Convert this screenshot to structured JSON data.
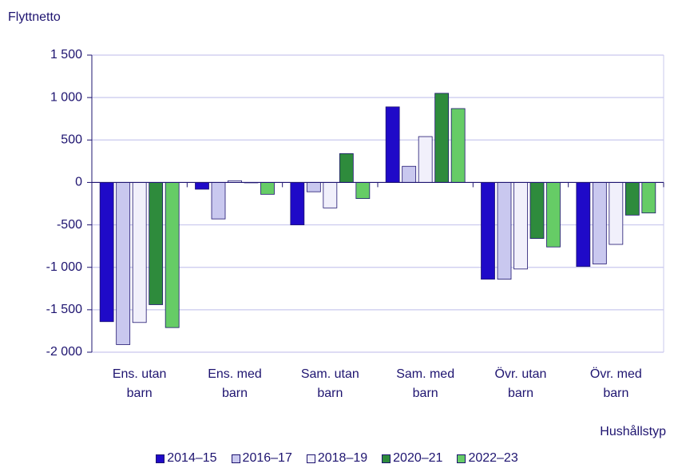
{
  "chart_data": {
    "type": "bar",
    "title": "Flyttnetto",
    "x_label": "Hushållstyp",
    "categories": [
      "Ens. utan\nbarn",
      "Ens. med\nbarn",
      "Sam. utan\nbarn",
      "Sam. med\nbarn",
      "Övr. utan\nbarn",
      "Övr. med\nbarn"
    ],
    "series": [
      {
        "name": "2014–15",
        "color": "#1f0ac8",
        "values": [
          -1640,
          -80,
          -500,
          890,
          -1140,
          -990
        ]
      },
      {
        "name": "2016–17",
        "color": "#c9c8ef",
        "values": [
          -1910,
          -430,
          -110,
          190,
          -1140,
          -960
        ]
      },
      {
        "name": "2018–19",
        "color": "#f1f0fb",
        "values": [
          -1650,
          20,
          -300,
          540,
          -1020,
          -730
        ]
      },
      {
        "name": "2020–21",
        "color": "#2e8b3c",
        "values": [
          -1440,
          0,
          340,
          1050,
          -660,
          -385
        ]
      },
      {
        "name": "2022–23",
        "color": "#66cc66",
        "values": [
          -1710,
          -140,
          -190,
          870,
          -760,
          -360
        ]
      }
    ],
    "ylim": [
      -2000,
      1500
    ],
    "yticks": [
      {
        "value": -2000,
        "label": "-2 000"
      },
      {
        "value": -1500,
        "label": "-1 500"
      },
      {
        "value": -1000,
        "label": "-1 000"
      },
      -500,
      0,
      500,
      {
        "value": 1000,
        "label": "1 000"
      },
      {
        "value": 1500,
        "label": "1 500"
      }
    ],
    "grid": true
  }
}
